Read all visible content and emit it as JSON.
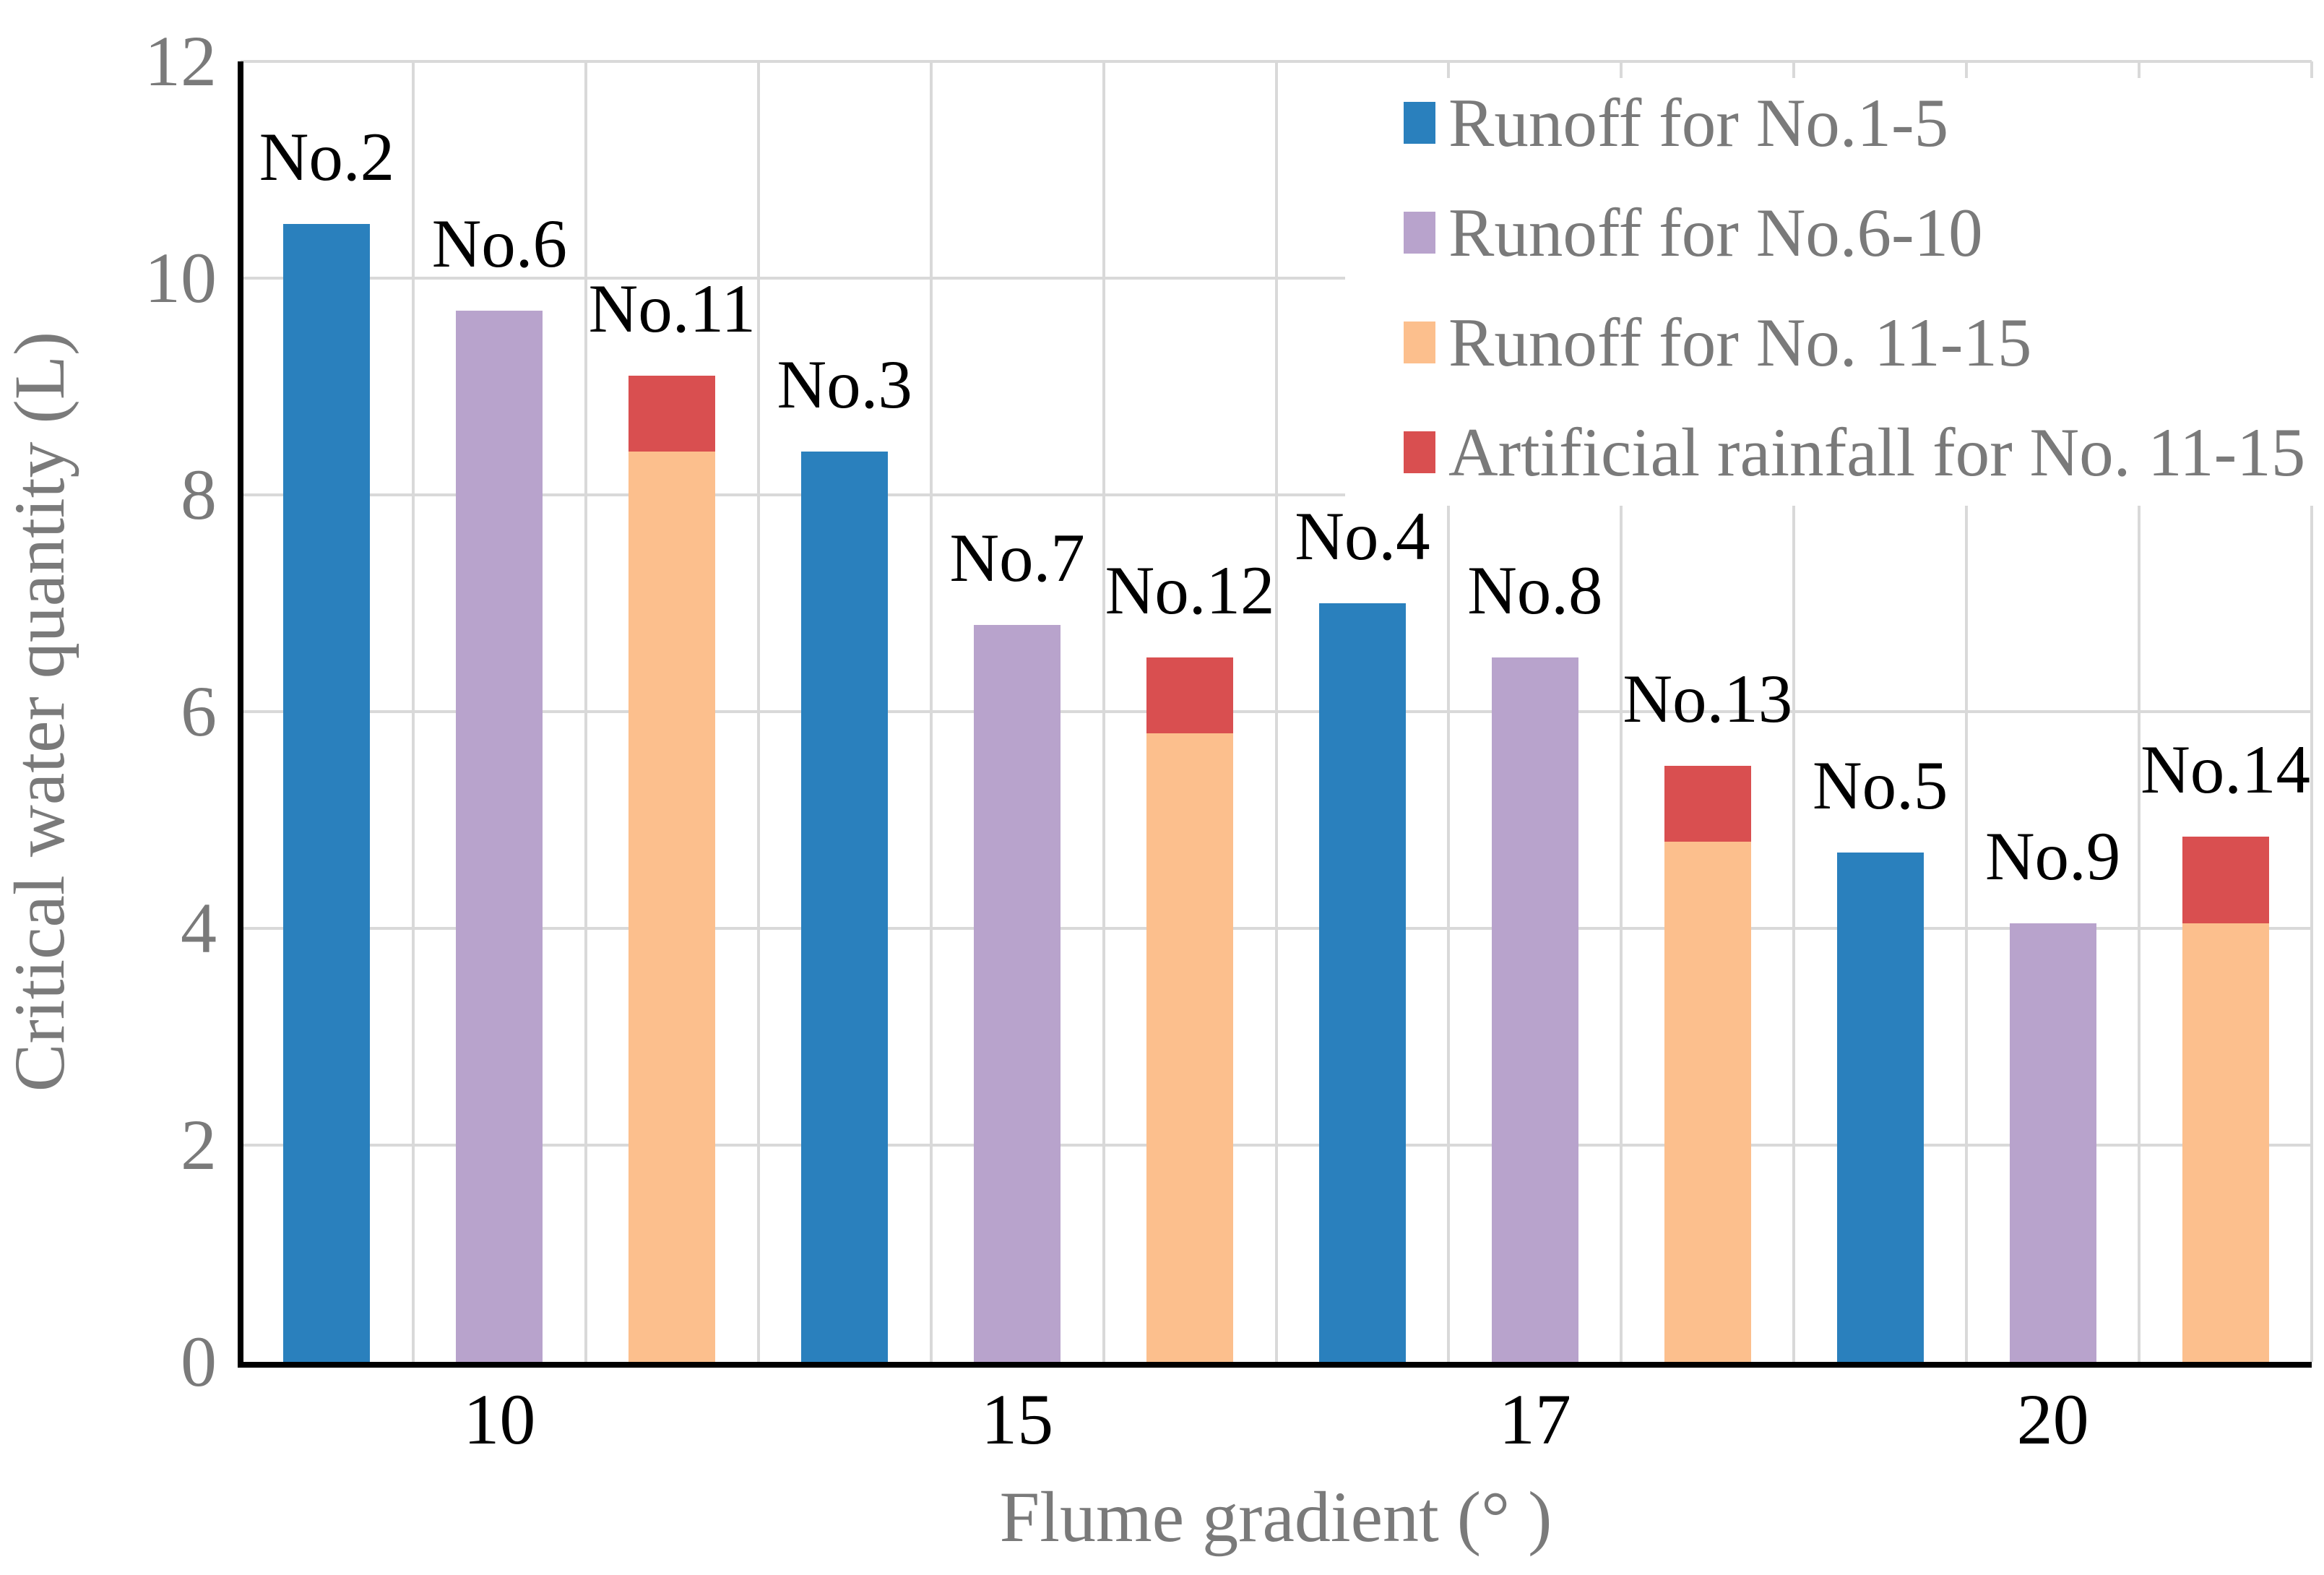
{
  "chart_data": {
    "type": "bar",
    "title": "",
    "xlabel": "Flume gradient (° )",
    "ylabel": "Critical water quantity (L)",
    "ylim": [
      0,
      12
    ],
    "ytick_step": 2,
    "ytick_labels": [
      "0",
      "2",
      "4",
      "6",
      "8",
      "10",
      "12"
    ],
    "grid": "on",
    "legend_position": "top-right",
    "groups": [
      {
        "label": "10"
      },
      {
        "label": "15"
      },
      {
        "label": "17"
      },
      {
        "label": "20"
      }
    ],
    "series": [
      {
        "name": "Runoff for No.1-5",
        "color": "#2A80BD"
      },
      {
        "name": "Runoff for No.6-10",
        "color": "#B8A3CC"
      },
      {
        "name": "Runoff for No. 11-15",
        "color": "#FCBF8D"
      },
      {
        "name": "Artificial rainfall for No. 11-15",
        "color": "#D94F50"
      }
    ],
    "bars": [
      {
        "label": "No.2",
        "group": 0,
        "series": 0,
        "value": 10.5
      },
      {
        "label": "No.6",
        "group": 0,
        "series": 1,
        "value": 9.7
      },
      {
        "label": "No.11",
        "group": 0,
        "series": 2,
        "value": 8.4,
        "stack_series": 3,
        "stack_value": 0.7
      },
      {
        "label": "No.3",
        "group": 1,
        "series": 0,
        "value": 8.4
      },
      {
        "label": "No.7",
        "group": 1,
        "series": 1,
        "value": 6.8
      },
      {
        "label": "No.12",
        "group": 1,
        "series": 2,
        "value": 5.8,
        "stack_series": 3,
        "stack_value": 0.7
      },
      {
        "label": "No.4",
        "group": 2,
        "series": 0,
        "value": 7.0
      },
      {
        "label": "No.8",
        "group": 2,
        "series": 1,
        "value": 6.5
      },
      {
        "label": "No.13",
        "group": 2,
        "series": 2,
        "value": 4.8,
        "stack_series": 3,
        "stack_value": 0.7
      },
      {
        "label": "No.5",
        "group": 3,
        "series": 0,
        "value": 4.7
      },
      {
        "label": "No.9",
        "group": 3,
        "series": 1,
        "value": 4.05
      },
      {
        "label": "No.14",
        "group": 3,
        "series": 2,
        "value": 4.05,
        "stack_series": 3,
        "stack_value": 0.8
      }
    ],
    "colors": {
      "gridline": "#D9D9D9",
      "axis": "#000000",
      "gray_text": "#7A7A7A",
      "data_label": "#000000",
      "background": "#FFFFFF"
    }
  }
}
